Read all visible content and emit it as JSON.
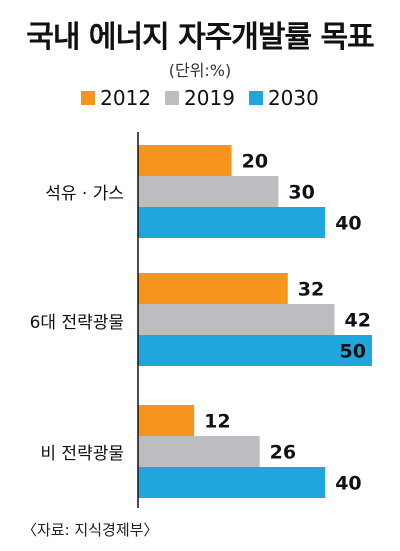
{
  "title": "국내 에너지 자주개발률 목표",
  "unit": "(단위:%)",
  "source": "〈자료: 지식경제부〉",
  "colors": {
    "2012": "#f7941d",
    "2019": "#bcbdc0",
    "2030": "#20a6dc",
    "axis": "#111111"
  },
  "chart_data": {
    "type": "bar",
    "orientation": "horizontal",
    "title": "국내 에너지 자주개발률 목표",
    "unit": "(단위:%)",
    "categories": [
      "석유 · 가스",
      "6대 전략광물",
      "비 전략광물"
    ],
    "series": [
      {
        "name": "2012",
        "color": "#f7941d",
        "values": [
          20,
          32,
          12
        ]
      },
      {
        "name": "2019",
        "color": "#bcbdc0",
        "values": [
          30,
          42,
          26
        ]
      },
      {
        "name": "2030",
        "color": "#20a6dc",
        "values": [
          40,
          50,
          40
        ]
      }
    ],
    "xlim": [
      0,
      50
    ],
    "grid": false,
    "legend": "top"
  }
}
